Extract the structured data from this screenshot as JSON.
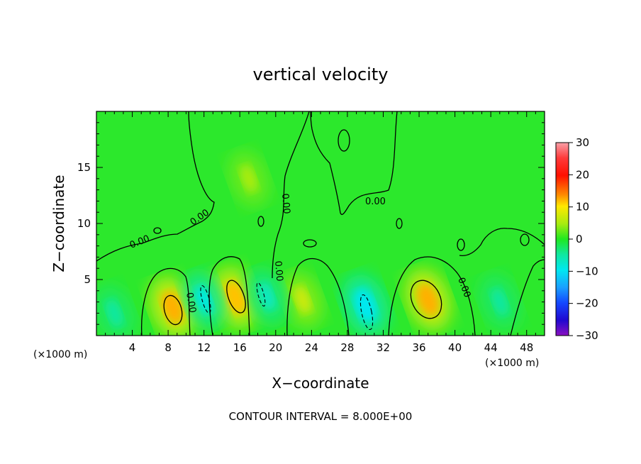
{
  "chart_data": {
    "type": "heatmap",
    "title": "vertical velocity",
    "xlabel": "X−coordinate",
    "ylabel": "Z−coordinate",
    "x_unit_left": "(×1000 m)",
    "x_unit_right": "(×1000 m)",
    "xlim": [
      0,
      50
    ],
    "ylim": [
      0,
      20
    ],
    "x_ticks": [
      4,
      8,
      12,
      16,
      20,
      24,
      28,
      32,
      36,
      40,
      44,
      48
    ],
    "y_ticks": [
      5,
      10,
      15
    ],
    "colorbar": {
      "range": [
        -30,
        30
      ],
      "ticks": [
        30,
        20,
        10,
        0,
        -10,
        -20,
        -30
      ],
      "tick_labels": [
        "30",
        "20",
        "10",
        "0",
        "−10",
        "−20",
        "−30"
      ]
    },
    "contour_interval_text": "CONTOUR INTERVAL = 8.000E+00",
    "contour_label": "0.00",
    "features": [
      {
        "kind": "updraft",
        "x": 8.5,
        "z": 2.5,
        "value": 13
      },
      {
        "kind": "updraft",
        "x": 15.5,
        "z": 3.4,
        "value": 12
      },
      {
        "kind": "updraft",
        "x": 23,
        "z": 3.2,
        "value": 7
      },
      {
        "kind": "updraft",
        "x": 37,
        "z": 3.2,
        "value": 13
      },
      {
        "kind": "updraft",
        "x": 17,
        "z": 14,
        "value": 5
      },
      {
        "kind": "downdraft",
        "x": 12,
        "z": 3.2,
        "value": -9
      },
      {
        "kind": "downdraft",
        "x": 19,
        "z": 3.5,
        "value": -7
      },
      {
        "kind": "downdraft",
        "x": 30,
        "z": 2.7,
        "value": -10
      },
      {
        "kind": "downdraft",
        "x": 2,
        "z": 2,
        "value": -5
      },
      {
        "kind": "downdraft",
        "x": 45,
        "z": 3,
        "value": -5
      }
    ]
  }
}
